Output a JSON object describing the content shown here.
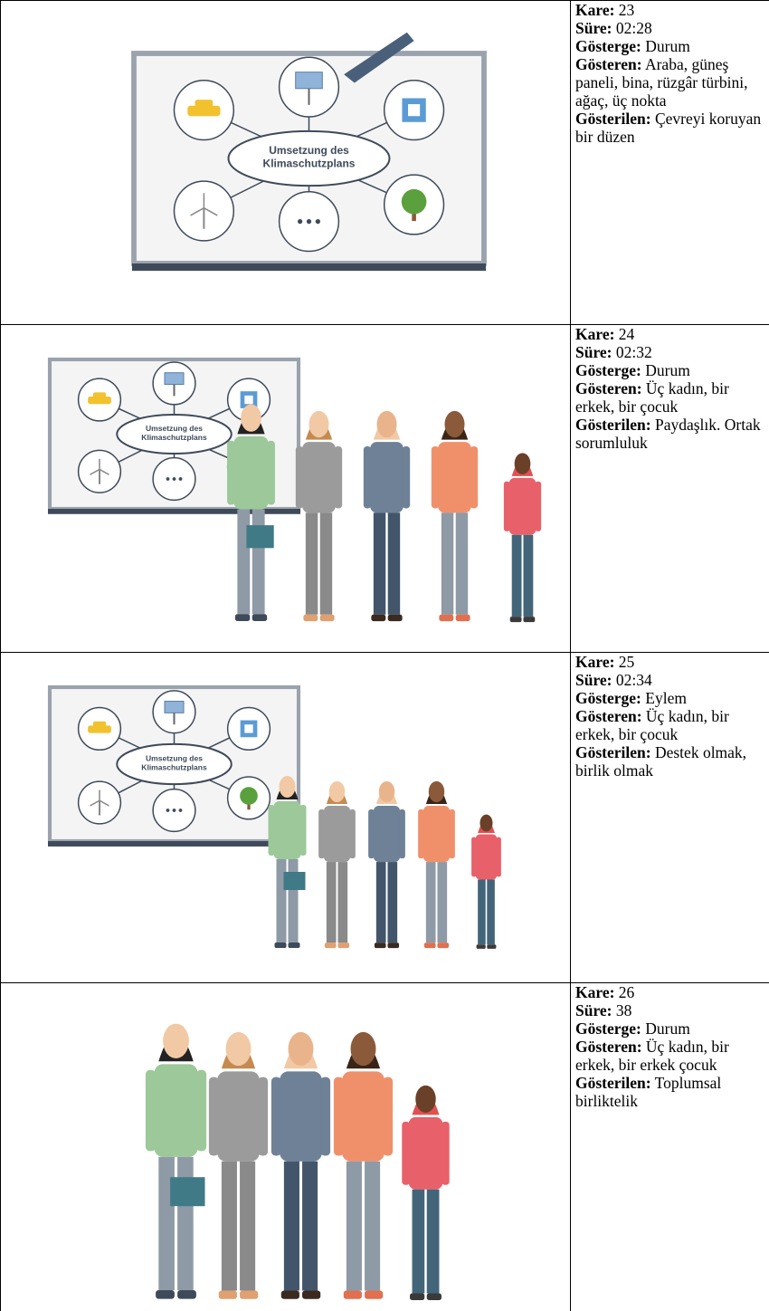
{
  "rows": [
    {
      "board": [
        "Umsetzung des",
        "Klimaschutzplans"
      ],
      "fields": [
        {
          "label": "Kare:",
          "value": "23"
        },
        {
          "label": "Süre:",
          "value": "02:28"
        },
        {
          "label": "Gösterge:",
          "value": "Durum"
        },
        {
          "label": "Gösteren:",
          "value": "Araba, güneş paneli, bina, rüzgâr türbini, ağaç, üç nokta"
        },
        {
          "label": "Gösterilen:",
          "value": "Çevreyi koruyan bir düzen"
        }
      ]
    },
    {
      "board": [
        "Umsetzung des",
        "Klimaschutzplans"
      ],
      "fields": [
        {
          "label": "Kare:",
          "value": "24"
        },
        {
          "label": "Süre:",
          "value": "02:32"
        },
        {
          "label": "Gösterge:",
          "value": "Durum"
        },
        {
          "label": "Gösteren:",
          "value": "Üç kadın, bir erkek, bir çocuk"
        },
        {
          "label": "Gösterilen:",
          "value": "Paydaşlık. Ortak sorumluluk"
        }
      ]
    },
    {
      "board": [
        "Umsetzung des",
        "Klimaschutzplans"
      ],
      "fields": [
        {
          "label": "Kare:",
          "value": "25"
        },
        {
          "label": "Süre:",
          "value": "02:34"
        },
        {
          "label": "Gösterge:",
          "value": "Eylem"
        },
        {
          "label": "Gösteren:",
          "value": "Üç kadın, bir erkek, bir çocuk"
        },
        {
          "label": "Gösterilen:",
          "value": "Destek olmak, birlik olmak"
        }
      ]
    },
    {
      "fields": [
        {
          "label": "Kare:",
          "value": "26"
        },
        {
          "label": "Süre:",
          "value": "38"
        },
        {
          "label": "Gösterge:",
          "value": "Durum"
        },
        {
          "label": "Gösteren:",
          "value": "Üç kadın, bir erkek, bir erkek çocuk"
        },
        {
          "label": "Gösterilen:",
          "value": "Toplumsal birliktelik"
        }
      ]
    }
  ]
}
